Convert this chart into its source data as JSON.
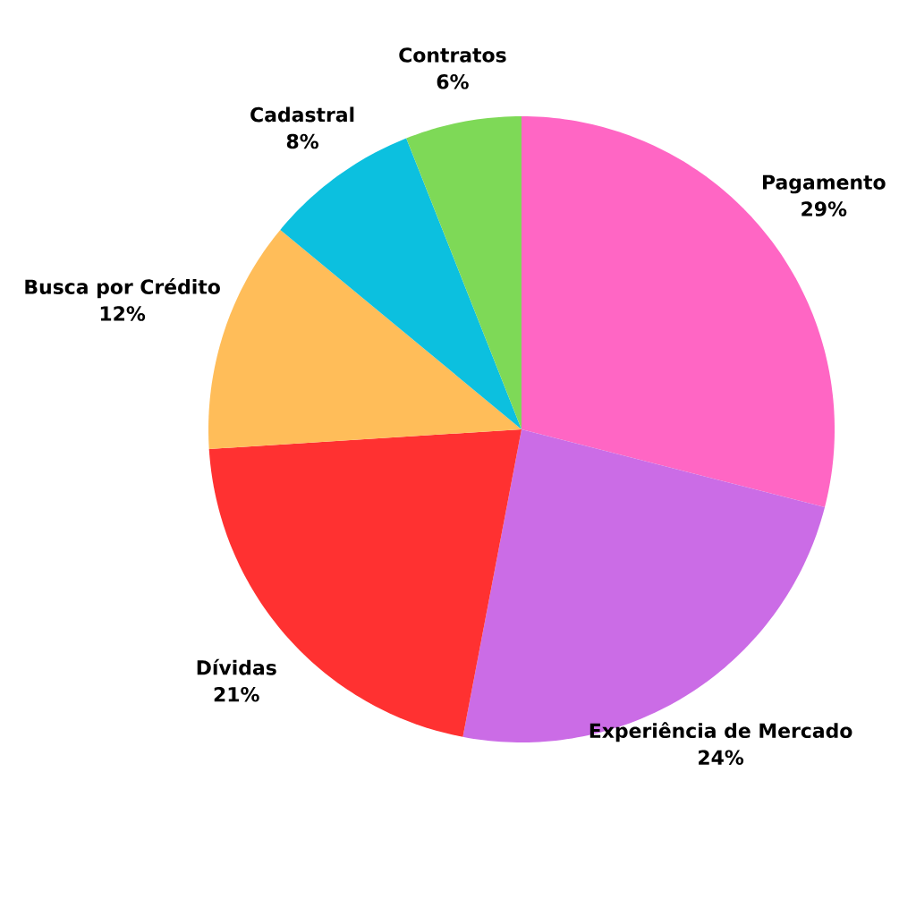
{
  "chart_data": {
    "type": "pie",
    "categories": [
      "Pagamento",
      "Experiência de Mercado",
      "Dívidas",
      "Busca por Crédito",
      "Cadastral",
      "Contratos"
    ],
    "values": [
      29,
      24,
      21,
      12,
      8,
      6
    ],
    "value_labels": [
      "29%",
      "24%",
      "21%",
      "12%",
      "8%",
      "6%"
    ],
    "colors": [
      "#ff66c4",
      "#cb6ce6",
      "#ff3131",
      "#ffbd59",
      "#0cc0df",
      "#7ed957"
    ]
  }
}
